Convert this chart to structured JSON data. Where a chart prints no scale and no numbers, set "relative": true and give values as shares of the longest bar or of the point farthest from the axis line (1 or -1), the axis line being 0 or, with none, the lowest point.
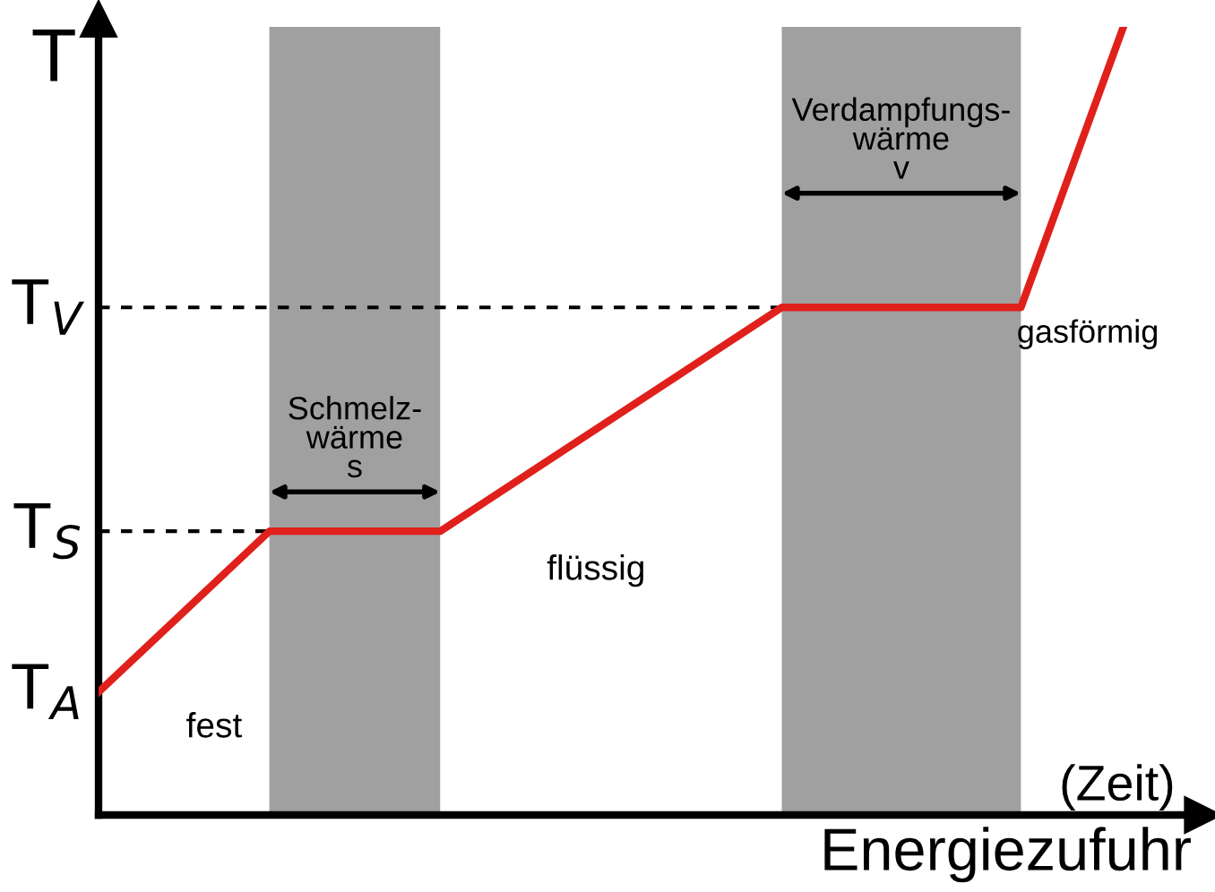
{
  "chart_data": {
    "type": "line",
    "relative": true,
    "categories": [
      null,
      null,
      null,
      null,
      null,
      null,
      null,
      null,
      null,
      null,
      null,
      null,
      null,
      null,
      null,
      null,
      null,
      null,
      null,
      null,
      null,
      null,
      null,
      null,
      null,
      null,
      null,
      null,
      null,
      null,
      null,
      null,
      null
    ],
    "series": [
      {
        "color": "#e0201b",
        "values": [
          0.156,
          null,
          null,
          null,
          null,
          0.36,
          null,
          null,
          null,
          null,
          0.36,
          null,
          null,
          null,
          null,
          null,
          null,
          null,
          null,
          null,
          0.644,
          null,
          null,
          null,
          null,
          null,
          null,
          0.644,
          null,
          null,
          1,
          null,
          null
        ]
      }
    ],
    "ylabel": "T",
    "xlabel": "Energiezufuhr",
    "ref_lines": [
      {
        "axis": "y",
        "value": 0.36,
        "label": "T$_{S}$",
        "line_style": "dashed",
        "color": "#000000"
      },
      {
        "axis": "y",
        "value": 0.644,
        "label": "T$_{V}$",
        "line_style": "dashed",
        "color": "#000000"
      }
    ],
    "annotations": [
      "T$_{A}$",
      "(Zeit)",
      "fest",
      "flüssig",
      "gasförmig",
      "Schmelz-\nwärme\ns",
      "Verdampfungs-\nwärme\nv"
    ],
    "legend": false,
    "marker": "none",
    "line_style": "solid"
  }
}
